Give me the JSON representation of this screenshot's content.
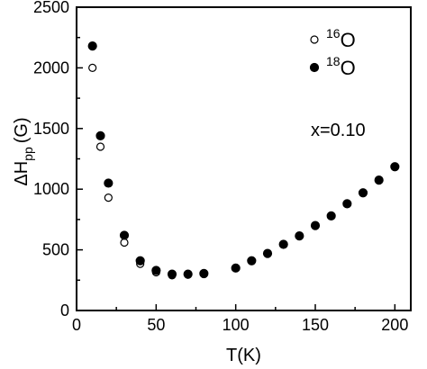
{
  "chart_data": {
    "type": "scatter",
    "title": "",
    "xlabel": "T(K)",
    "ylabel_parts": {
      "main": "ΔH",
      "sub": "pp",
      "unit": "(G)"
    },
    "xlim": [
      0,
      210
    ],
    "ylim": [
      0,
      2500
    ],
    "x_ticks": [
      0,
      50,
      100,
      150,
      200
    ],
    "y_ticks": [
      0,
      500,
      1000,
      1500,
      2000,
      2500
    ],
    "grid": false,
    "legend_position": "top-right",
    "annotation": "x=0.10",
    "series": [
      {
        "name": "16O",
        "legend": {
          "sup": "16",
          "text": "O"
        },
        "marker": "open-circle",
        "color": "#000000",
        "points": [
          {
            "x": 10,
            "y": 2000
          },
          {
            "x": 15,
            "y": 1350
          },
          {
            "x": 20,
            "y": 930
          },
          {
            "x": 30,
            "y": 560
          },
          {
            "x": 40,
            "y": 385
          },
          {
            "x": 50,
            "y": 315
          },
          {
            "x": 60,
            "y": 290
          },
          {
            "x": 70,
            "y": 295
          },
          {
            "x": 80,
            "y": 300
          }
        ]
      },
      {
        "name": "18O",
        "legend": {
          "sup": "18",
          "text": "O"
        },
        "marker": "filled-circle",
        "color": "#000000",
        "points": [
          {
            "x": 10,
            "y": 2180
          },
          {
            "x": 15,
            "y": 1440
          },
          {
            "x": 20,
            "y": 1050
          },
          {
            "x": 30,
            "y": 620
          },
          {
            "x": 40,
            "y": 410
          },
          {
            "x": 50,
            "y": 330
          },
          {
            "x": 60,
            "y": 300
          },
          {
            "x": 70,
            "y": 300
          },
          {
            "x": 80,
            "y": 305
          },
          {
            "x": 100,
            "y": 350
          },
          {
            "x": 110,
            "y": 410
          },
          {
            "x": 120,
            "y": 470
          },
          {
            "x": 130,
            "y": 545
          },
          {
            "x": 140,
            "y": 615
          },
          {
            "x": 150,
            "y": 700
          },
          {
            "x": 160,
            "y": 780
          },
          {
            "x": 170,
            "y": 880
          },
          {
            "x": 180,
            "y": 970
          },
          {
            "x": 190,
            "y": 1075
          },
          {
            "x": 200,
            "y": 1185
          }
        ]
      }
    ]
  }
}
